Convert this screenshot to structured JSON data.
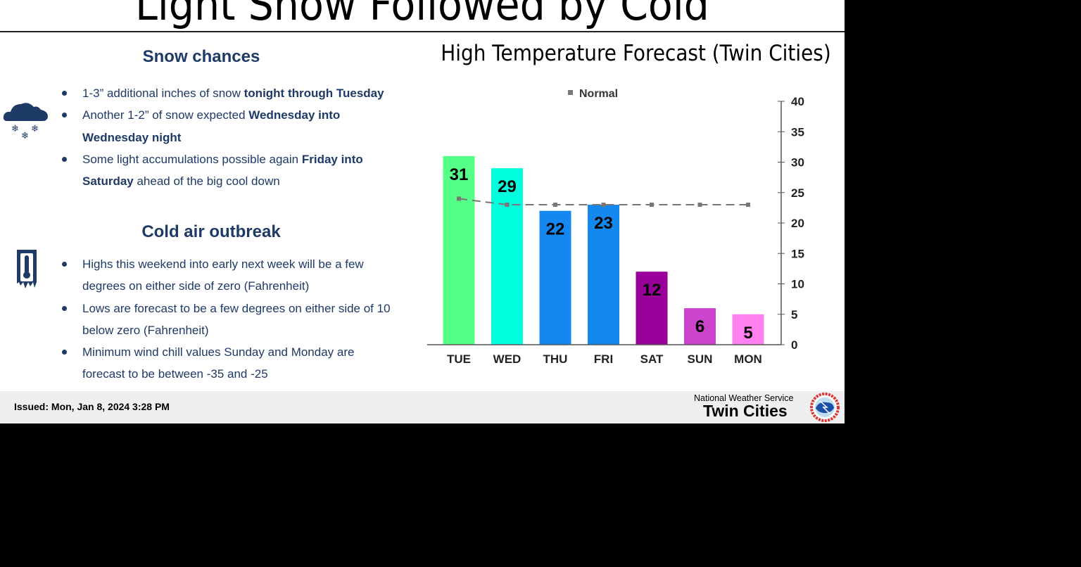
{
  "title": "Light Snow Followed by Cold",
  "snow": {
    "heading": "Snow chances",
    "icon": "cloud-snow-icon",
    "bullets": [
      {
        "pre": "1-3” additional inches of snow ",
        "bold": "tonight through Tuesday",
        "post": ""
      },
      {
        "pre": "Another 1-2” of snow expected ",
        "bold": "Wednesday into Wednesday night",
        "post": ""
      },
      {
        "pre": "Some light accumulations possible again ",
        "bold": "Friday into Saturday",
        "post": " ahead of the big cool down"
      }
    ]
  },
  "cold": {
    "heading": "Cold air outbreak",
    "icon": "frozen-thermometer-icon",
    "bullets": [
      "Highs this weekend into early next week will be a few degrees on either side of zero (Fahrenheit)",
      "Lows are forecast to be a few degrees on either side of 10 below zero (Fahrenheit)",
      "Minimum wind chill values Sunday and Monday are forecast to be between -35 and -25"
    ]
  },
  "chart_data": {
    "type": "bar",
    "title": "High Temperature Forecast (Twin Cities)",
    "categories": [
      "TUE",
      "WED",
      "THU",
      "FRI",
      "SAT",
      "SUN",
      "MON"
    ],
    "values": [
      31,
      29,
      22,
      23,
      12,
      6,
      5
    ],
    "colors": [
      "#55ff88",
      "#00ffdd",
      "#1488ee",
      "#1488ee",
      "#990099",
      "#cc44cc",
      "#ff80ee"
    ],
    "series": [
      {
        "name": "Normal",
        "type": "line",
        "style": "dashed",
        "color": "#777777",
        "values": [
          24,
          23,
          23,
          23,
          23,
          23,
          23
        ]
      }
    ],
    "ylim": [
      0,
      40
    ],
    "yticks": [
      0,
      5,
      10,
      15,
      20,
      25,
      30,
      35,
      40
    ],
    "yaxis_side": "right",
    "legend": "top",
    "grid": false
  },
  "footer": {
    "issued": "Issued: Mon, Jan 8, 2024 3:28 PM",
    "agency": "National Weather Service",
    "office": "Twin Cities",
    "logo_text": "NATIONAL WEATHER SERVICE"
  }
}
